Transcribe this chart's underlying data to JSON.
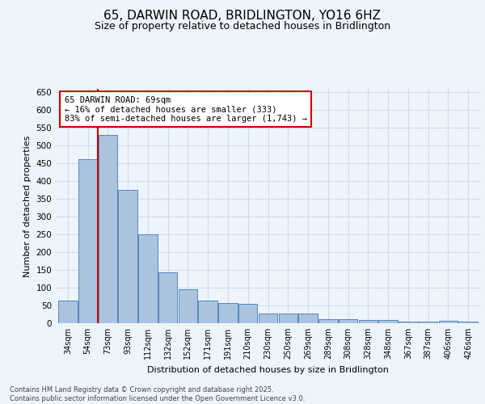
{
  "title1": "65, DARWIN ROAD, BRIDLINGTON, YO16 6HZ",
  "title2": "Size of property relative to detached houses in Bridlington",
  "xlabel": "Distribution of detached houses by size in Bridlington",
  "ylabel": "Number of detached properties",
  "categories": [
    "34sqm",
    "54sqm",
    "73sqm",
    "93sqm",
    "112sqm",
    "132sqm",
    "152sqm",
    "171sqm",
    "191sqm",
    "210sqm",
    "230sqm",
    "250sqm",
    "269sqm",
    "289sqm",
    "308sqm",
    "328sqm",
    "348sqm",
    "367sqm",
    "387sqm",
    "406sqm",
    "426sqm"
  ],
  "values": [
    63,
    463,
    530,
    375,
    250,
    143,
    95,
    63,
    57,
    55,
    28,
    27,
    27,
    11,
    11,
    8,
    8,
    5,
    5,
    7,
    5
  ],
  "bar_color": "#aac4e0",
  "bar_edge_color": "#5588bb",
  "redline_x": 1.5,
  "annotation_text": "65 DARWIN ROAD: 69sqm\n← 16% of detached houses are smaller (333)\n83% of semi-detached houses are larger (1,743) →",
  "annotation_box_color": "#ffffff",
  "annotation_box_edge": "#cc0000",
  "redline_color": "#cc0000",
  "ylim": [
    0,
    660
  ],
  "yticks": [
    0,
    50,
    100,
    150,
    200,
    250,
    300,
    350,
    400,
    450,
    500,
    550,
    600,
    650
  ],
  "grid_color": "#ccddee",
  "background_color": "#eef4fb",
  "footer": "Contains HM Land Registry data © Crown copyright and database right 2025.\nContains public sector information licensed under the Open Government Licence v3.0.",
  "title1_fontsize": 11,
  "title2_fontsize": 9,
  "ylabel_fontsize": 8,
  "xlabel_fontsize": 8
}
